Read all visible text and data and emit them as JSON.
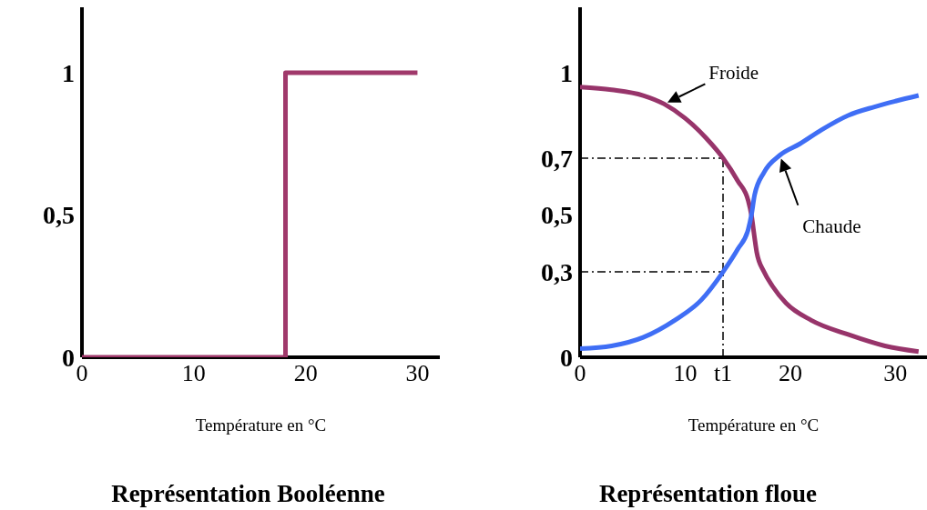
{
  "chart_data": [
    {
      "type": "step",
      "title": "Représentation Booléenne",
      "xlabel": "Température en °C",
      "xlim": [
        0,
        32
      ],
      "ylim": [
        0,
        1.23
      ],
      "xticks": [
        0,
        10,
        20,
        30
      ],
      "yticks": [
        {
          "value": 0,
          "label": "0"
        },
        {
          "value": 0.5,
          "label": "0,5"
        },
        {
          "value": 1,
          "label": "1"
        }
      ],
      "grid": false,
      "legend": false,
      "marker": "none",
      "line_style": "solid",
      "series": [
        {
          "x": [
            0,
            18.2,
            30
          ],
          "values": [
            0,
            1,
            1
          ],
          "color": "#a0396b"
        }
      ]
    },
    {
      "type": "line",
      "title": "Représentation floue",
      "xlabel": "Température en °C",
      "xlim": [
        0,
        33
      ],
      "ylim": [
        0,
        1.23
      ],
      "xticks": [
        0,
        10,
        {
          "value": 13.6,
          "label": "t1"
        },
        20,
        30
      ],
      "yticks": [
        {
          "value": 0,
          "label": "0"
        },
        {
          "value": 0.3,
          "label": "0,3"
        },
        {
          "value": 0.5,
          "label": "0,5"
        },
        {
          "value": 0.7,
          "label": "0,7"
        },
        {
          "value": 1,
          "label": "1"
        }
      ],
      "grid": false,
      "legend": false,
      "marker": "none",
      "line_style": "solid",
      "series": [
        {
          "name": "Froide",
          "color": "#97346a",
          "x": [
            0,
            3,
            6,
            8,
            10,
            12,
            13.6,
            15,
            16,
            16.3,
            16.6,
            16.8,
            17.5,
            18.3,
            19.6,
            22,
            25.5,
            29,
            32.2
          ],
          "values": [
            0.95,
            0.94,
            0.92,
            0.89,
            0.84,
            0.77,
            0.7,
            0.62,
            0.55,
            0.5,
            0.42,
            0.37,
            0.3,
            0.25,
            0.19,
            0.13,
            0.08,
            0.04,
            0.02
          ]
        },
        {
          "name": "Chaude",
          "color": "#3f6ef5",
          "x": [
            0,
            3,
            6,
            9,
            11.5,
            13.6,
            15,
            16,
            16.3,
            16.6,
            17.5,
            19,
            20.9,
            23,
            25.5,
            28,
            30,
            32.2
          ],
          "values": [
            0.03,
            0.04,
            0.07,
            0.13,
            0.2,
            0.3,
            0.38,
            0.45,
            0.5,
            0.57,
            0.65,
            0.71,
            0.75,
            0.8,
            0.85,
            0.88,
            0.9,
            0.92
          ]
        }
      ],
      "ref_lines": [
        {
          "axis": "y",
          "value": 0.7,
          "line_style": "dashed",
          "color": "#000000"
        },
        {
          "axis": "y",
          "value": 0.3,
          "line_style": "dashed",
          "color": "#000000"
        },
        {
          "axis": "x",
          "value": 13.6,
          "line_style": "dashed",
          "color": "#000000"
        }
      ]
    }
  ]
}
